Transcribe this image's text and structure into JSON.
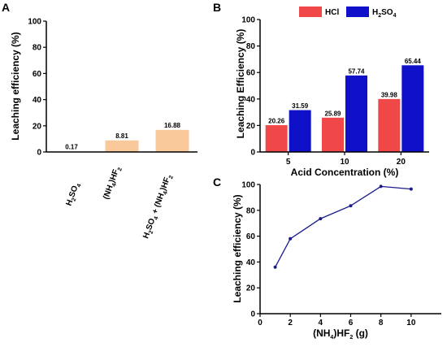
{
  "chart_data": [
    {
      "panel": "A",
      "type": "bar",
      "ylabel": "Leaching efficiency (%)",
      "xlabel": "",
      "ylim": [
        0,
        100
      ],
      "yticks": [
        0,
        20,
        40,
        60,
        80,
        100
      ],
      "categories": [
        "H2SO4",
        "(NH4)HF2",
        "H2SO4 + (NH4)HF2"
      ],
      "values": [
        0.17,
        8.81,
        16.88
      ],
      "value_labels": [
        "0.17",
        "8.81",
        "16.88"
      ],
      "bar_color": "#f9c89b"
    },
    {
      "panel": "B",
      "type": "bar",
      "ylabel": "Leaching Efficiency (%)",
      "xlabel": "Acid Concentration (%)",
      "ylim": [
        0,
        100
      ],
      "yticks": [
        0,
        20,
        40,
        60,
        80,
        100
      ],
      "categories": [
        "5",
        "10",
        "20"
      ],
      "legend_position": "top",
      "series": [
        {
          "name": "HCl",
          "color": "#f04848",
          "values": [
            20.26,
            25.89,
            39.98
          ],
          "value_labels": [
            "20.26",
            "25.89",
            "39.98"
          ]
        },
        {
          "name": "H2SO4",
          "color": "#1010c8",
          "values": [
            31.59,
            57.74,
            65.44
          ],
          "value_labels": [
            "31.59",
            "57.74",
            "65.44"
          ]
        }
      ]
    },
    {
      "panel": "C",
      "type": "line",
      "ylabel": "Leaching efficiency (%)",
      "xlabel": "(NH4)HF2 (g)",
      "xlim": [
        0,
        12
      ],
      "ylim": [
        0,
        100
      ],
      "xticks": [
        0,
        2,
        4,
        6,
        8,
        10
      ],
      "yticks": [
        0,
        20,
        40,
        60,
        80,
        100
      ],
      "line_color": "#1a1a8c",
      "x": [
        1,
        2,
        4,
        6,
        8,
        10
      ],
      "y": [
        36,
        58,
        73.5,
        83.5,
        98.5,
        96.5
      ]
    }
  ]
}
